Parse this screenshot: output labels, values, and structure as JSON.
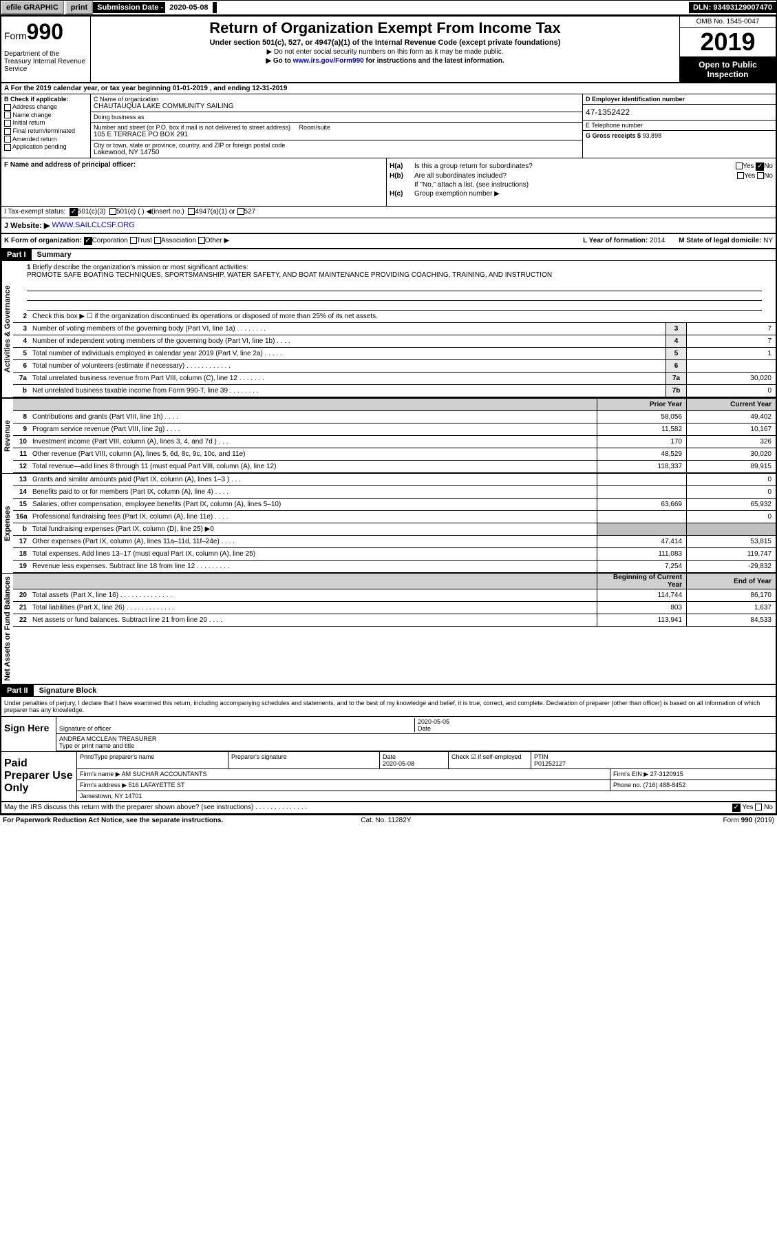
{
  "topbar": {
    "efile": "efile GRAPHIC",
    "print": "print",
    "sub_date_label": "Submission Date - ",
    "sub_date": "2020-05-08",
    "dln_label": "DLN: ",
    "dln": "93493129007470"
  },
  "header": {
    "form_prefix": "Form",
    "form_num": "990",
    "dept": "Department of the Treasury\nInternal Revenue Service",
    "title": "Return of Organization Exempt From Income Tax",
    "subtitle": "Under section 501(c), 527, or 4947(a)(1) of the Internal Revenue Code (except private foundations)",
    "note1": "▶ Do not enter social security numbers on this form as it may be made public.",
    "note2_pre": "▶ Go to ",
    "note2_link": "www.irs.gov/Form990",
    "note2_post": " for instructions and the latest information.",
    "omb": "OMB No. 1545-0047",
    "year": "2019",
    "open": "Open to Public Inspection"
  },
  "row_a": "A For the 2019 calendar year, or tax year beginning 01-01-2019   , and ending 12-31-2019",
  "col_b": {
    "label": "B Check if applicable:",
    "items": [
      "Address change",
      "Name change",
      "Initial return",
      "Final return/terminated",
      "Amended return",
      "Application pending"
    ]
  },
  "col_c": {
    "name_label": "C Name of organization",
    "name": "CHAUTAUQUA LAKE COMMUNITY SAILING",
    "dba_label": "Doing business as",
    "addr_label": "Number and street (or P.O. box if mail is not delivered to street address)",
    "room_label": "Room/suite",
    "addr": "105 E TERRACE PO BOX 291",
    "city_label": "City or town, state or province, country, and ZIP or foreign postal code",
    "city": "Lakewood, NY  14750"
  },
  "col_d": {
    "ein_label": "D Employer identification number",
    "ein": "47-1352422",
    "phone_label": "E Telephone number",
    "gross_label": "G Gross receipts $ ",
    "gross": "93,898"
  },
  "col_f": {
    "label": "F  Name and address of principal officer:"
  },
  "col_h": {
    "ha_label": "H(a)",
    "ha_text": "Is this a group return for subordinates?",
    "hb_label": "H(b)",
    "hb_text": "Are all subordinates included?",
    "hb_note": "If \"No,\" attach a list. (see instructions)",
    "hc_label": "H(c)",
    "hc_text": "Group exemption number ▶",
    "yes": "Yes",
    "no": "No"
  },
  "row_i": {
    "label": "I   Tax-exempt status:",
    "opt1": "501(c)(3)",
    "opt2": "501(c) (  ) ◀(insert no.)",
    "opt3": "4947(a)(1) or",
    "opt4": "527"
  },
  "row_j": {
    "label": "J   Website: ▶",
    "url": "WWW.SAILCLCSF.ORG"
  },
  "row_k": {
    "label": "K Form of organization:",
    "opts": [
      "Corporation",
      "Trust",
      "Association",
      "Other ▶"
    ],
    "l_label": "L Year of formation: ",
    "l_val": "2014",
    "m_label": "M State of legal domicile: ",
    "m_val": "NY"
  },
  "part1": {
    "header": "Part I",
    "title": "Summary",
    "line1_label": "1",
    "line1_text": "Briefly describe the organization's mission or most significant activities:",
    "mission": "PROMOTE SAFE BOATING TECHNIQUES, SPORTSMANSHIP, WATER SAFETY, AND BOAT MAINTENANCE PROVIDING COACHING, TRAINING, AND INSTRUCTION",
    "line2": "Check this box ▶ ☐  if the organization discontinued its operations or disposed of more than 25% of its net assets.",
    "vert_activities": "Activities & Governance",
    "vert_revenue": "Revenue",
    "vert_expenses": "Expenses",
    "vert_net": "Net Assets or Fund Balances",
    "prior_year": "Prior Year",
    "current_year": "Current Year",
    "begin_year": "Beginning of Current Year",
    "end_year": "End of Year",
    "rows_gov": [
      {
        "n": "3",
        "d": "Number of voting members of the governing body (Part VI, line 1a)  .   .   .   .   .   .   .   .",
        "box": "3",
        "v": "7"
      },
      {
        "n": "4",
        "d": "Number of independent voting members of the governing body (Part VI, line 1b)  .   .   .   .",
        "box": "4",
        "v": "7"
      },
      {
        "n": "5",
        "d": "Total number of individuals employed in calendar year 2019 (Part V, line 2a)  .   .   .   .   .",
        "box": "5",
        "v": "1"
      },
      {
        "n": "6",
        "d": "Total number of volunteers (estimate if necessary)   .   .   .   .   .   .   .   .   .   .   .   .",
        "box": "6",
        "v": ""
      },
      {
        "n": "7a",
        "d": "Total unrelated business revenue from Part VIII, column (C), line 12   .   .   .   .   .   .   .",
        "box": "7a",
        "v": "30,020"
      },
      {
        "n": "b",
        "d": "Net unrelated business taxable income from Form 990-T, line 39   .   .   .   .   .   .   .   .",
        "box": "7b",
        "v": "0"
      }
    ],
    "rows_rev": [
      {
        "n": "8",
        "d": "Contributions and grants (Part VIII, line 1h)   .   .   .   .",
        "py": "58,056",
        "cy": "49,402"
      },
      {
        "n": "9",
        "d": "Program service revenue (Part VIII, line 2g)   .   .   .   .",
        "py": "11,582",
        "cy": "10,167"
      },
      {
        "n": "10",
        "d": "Investment income (Part VIII, column (A), lines 3, 4, and 7d )   .   .   .",
        "py": "170",
        "cy": "326"
      },
      {
        "n": "11",
        "d": "Other revenue (Part VIII, column (A), lines 5, 6d, 8c, 9c, 10c, and 11e)",
        "py": "48,529",
        "cy": "30,020"
      },
      {
        "n": "12",
        "d": "Total revenue—add lines 8 through 11 (must equal Part VIII, column (A), line 12)",
        "py": "118,337",
        "cy": "89,915"
      }
    ],
    "rows_exp": [
      {
        "n": "13",
        "d": "Grants and similar amounts paid (Part IX, column (A), lines 1–3 )  .   .   .",
        "py": "",
        "cy": "0"
      },
      {
        "n": "14",
        "d": "Benefits paid to or for members (Part IX, column (A), line 4)  .   .   .   .",
        "py": "",
        "cy": "0"
      },
      {
        "n": "15",
        "d": "Salaries, other compensation, employee benefits (Part IX, column (A), lines 5–10)",
        "py": "63,669",
        "cy": "65,932"
      },
      {
        "n": "16a",
        "d": "Professional fundraising fees (Part IX, column (A), line 11e)  .   .   .   .",
        "py": "",
        "cy": "0"
      },
      {
        "n": "b",
        "d": "Total fundraising expenses (Part IX, column (D), line 25) ▶0",
        "py": "shaded",
        "cy": "shaded"
      },
      {
        "n": "17",
        "d": "Other expenses (Part IX, column (A), lines 11a–11d, 11f–24e)  .   .   .   .",
        "py": "47,414",
        "cy": "53,815"
      },
      {
        "n": "18",
        "d": "Total expenses. Add lines 13–17 (must equal Part IX, column (A), line 25)",
        "py": "111,083",
        "cy": "119,747"
      },
      {
        "n": "19",
        "d": "Revenue less expenses. Subtract line 18 from line 12  .   .   .   .   .   .   .   .   .",
        "py": "7,254",
        "cy": "-29,832"
      }
    ],
    "rows_net": [
      {
        "n": "20",
        "d": "Total assets (Part X, line 16)  .   .   .   .   .   .   .   .   .   .   .   .   .   .",
        "py": "114,744",
        "cy": "86,170"
      },
      {
        "n": "21",
        "d": "Total liabilities (Part X, line 26)  .   .   .   .   .   .   .   .   .   .   .   .   .",
        "py": "803",
        "cy": "1,637"
      },
      {
        "n": "22",
        "d": "Net assets or fund balances. Subtract line 21 from line 20  .   .   .   .",
        "py": "113,941",
        "cy": "84,533"
      }
    ]
  },
  "part2": {
    "header": "Part II",
    "title": "Signature Block",
    "decl": "Under penalties of perjury, I declare that I have examined this return, including accompanying schedules and statements, and to the best of my knowledge and belief, it is true, correct, and complete. Declaration of preparer (other than officer) is based on all information of which preparer has any knowledge.",
    "sign_here": "Sign Here",
    "sig_officer": "Signature of officer",
    "sig_date": "2020-05-05",
    "date_label": "Date",
    "name_title": "ANDREA MCCLEAN  TREASURER",
    "name_title_label": "Type or print name and title",
    "paid_prep": "Paid Preparer Use Only",
    "prep_name_label": "Print/Type preparer's name",
    "prep_sig_label": "Preparer's signature",
    "prep_date_label": "Date",
    "prep_date": "2020-05-08",
    "check_label": "Check ☑ if self-employed",
    "ptin_label": "PTIN",
    "ptin": "P01252127",
    "firm_name_label": "Firm's name   ▶",
    "firm_name": "AM SUCHAR ACCOUNTANTS",
    "firm_ein_label": "Firm's EIN ▶",
    "firm_ein": "27-3120915",
    "firm_addr_label": "Firm's address ▶",
    "firm_addr1": "516 LAFAYETTE ST",
    "firm_addr2": "Jamestown, NY  14701",
    "phone_label": "Phone no. ",
    "phone": "(716) 488-8452",
    "discuss": "May the IRS discuss this return with the preparer shown above? (see instructions)   .   .   .   .   .   .   .   .   .   .   .   .   .   .",
    "paperwork": "For Paperwork Reduction Act Notice, see the separate instructions.",
    "cat": "Cat. No. 11282Y",
    "form_foot": "Form 990 (2019)"
  }
}
